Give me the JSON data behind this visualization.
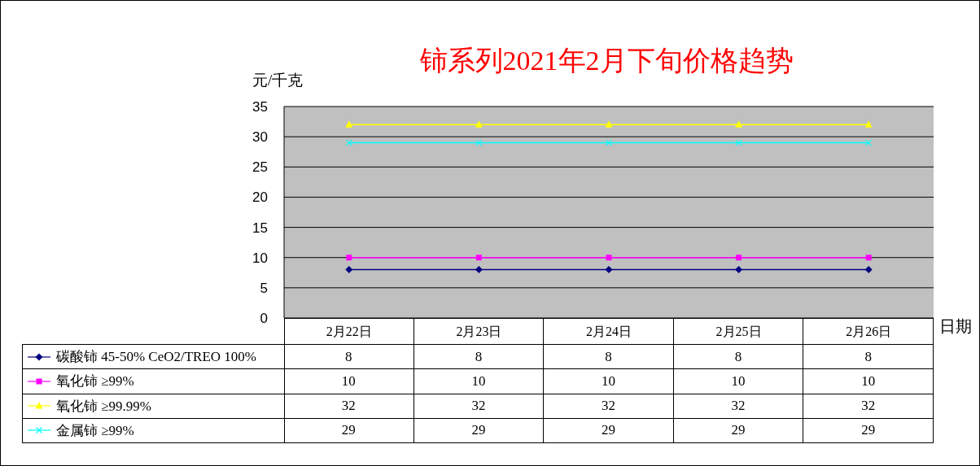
{
  "chart_data": {
    "type": "line",
    "title": "铈系列2021年2月下旬价格趋势",
    "xlabel": "日期",
    "ylabel": "元/千克",
    "categories": [
      "2月22日",
      "2月23日",
      "2月24日",
      "2月25日",
      "2月26日"
    ],
    "series": [
      {
        "name": "碳酸铈 45-50% CeO2/TREO 100%",
        "color": "#000080",
        "marker": "diamond",
        "values": [
          8,
          8,
          8,
          8,
          8
        ]
      },
      {
        "name": "氧化铈 ≥99%",
        "color": "#ff00ff",
        "marker": "square",
        "values": [
          10,
          10,
          10,
          10,
          10
        ]
      },
      {
        "name": "氧化铈 ≥99.99%",
        "color": "#ffff00",
        "marker": "triangle",
        "values": [
          32,
          32,
          32,
          32,
          32
        ]
      },
      {
        "name": "金属铈 ≥99%",
        "color": "#00ffff",
        "marker": "cross",
        "values": [
          29,
          29,
          29,
          29,
          29
        ]
      }
    ],
    "ylim": [
      0,
      35
    ],
    "yticks": [
      0,
      5,
      10,
      15,
      20,
      25,
      30,
      35
    ],
    "grid": "y",
    "legend": "bottom left",
    "data_labels": true
  }
}
